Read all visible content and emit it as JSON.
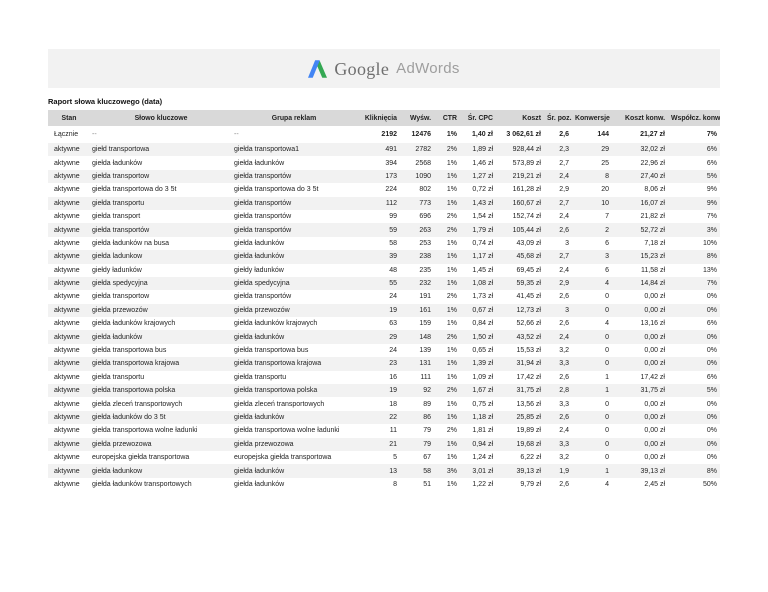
{
  "logo": {
    "google_text": "Google",
    "adwords_text": "AdWords",
    "colors": {
      "blue": "#4285F4",
      "green": "#34A853"
    }
  },
  "report_title": "Raport słowa kluczowego (data)",
  "table": {
    "columns": [
      "Stan",
      "Słowo kluczowe",
      "Grupa reklam",
      "Kliknięcia",
      "Wyśw.",
      "CTR",
      "Śr. CPC",
      "Koszt",
      "Śr. poz.",
      "Konwersje",
      "Koszt konw.",
      "Współcz. konw."
    ],
    "column_keys": [
      "stan",
      "keyword",
      "ad-group",
      "clicks",
      "impressions",
      "ctr",
      "avg-cpc",
      "cost",
      "avg-pos",
      "conversions",
      "cost-per-conv",
      "conv-rate"
    ],
    "totals_row": [
      "Łącznie",
      "--",
      "--",
      "2192",
      "12476",
      "1%",
      "1,40 zł",
      "3 062,61 zł",
      "2,6",
      "144",
      "21,27 zł",
      "7%"
    ],
    "rows": [
      [
        "aktywne",
        "giełd transportowa",
        "giełda transportowa1",
        "491",
        "2782",
        "2%",
        "1,89 zł",
        "928,44 zł",
        "2,3",
        "29",
        "32,02 zł",
        "6%"
      ],
      [
        "aktywne",
        "giełda ładunków",
        "giełda ładunków",
        "394",
        "2568",
        "1%",
        "1,46 zł",
        "573,89 zł",
        "2,7",
        "25",
        "22,96 zł",
        "6%"
      ],
      [
        "aktywne",
        "giełda transportow",
        "giełda transportów",
        "173",
        "1090",
        "1%",
        "1,27 zł",
        "219,21 zł",
        "2,4",
        "8",
        "27,40 zł",
        "5%"
      ],
      [
        "aktywne",
        "giełda transportowa do 3 5t",
        "giełda transportowa do 3 5t",
        "224",
        "802",
        "1%",
        "0,72 zł",
        "161,28 zł",
        "2,9",
        "20",
        "8,06 zł",
        "9%"
      ],
      [
        "aktywne",
        "giełda transportu",
        "giełda transportów",
        "112",
        "773",
        "1%",
        "1,43 zł",
        "160,67 zł",
        "2,7",
        "10",
        "16,07 zł",
        "9%"
      ],
      [
        "aktywne",
        "giełda transport",
        "giełda transportów",
        "99",
        "696",
        "2%",
        "1,54 zł",
        "152,74 zł",
        "2,4",
        "7",
        "21,82 zł",
        "7%"
      ],
      [
        "aktywne",
        "giełda transportów",
        "giełda transportów",
        "59",
        "263",
        "2%",
        "1,79 zł",
        "105,44 zł",
        "2,6",
        "2",
        "52,72 zł",
        "3%"
      ],
      [
        "aktywne",
        "giełda ładunków na busa",
        "giełda ładunków",
        "58",
        "253",
        "1%",
        "0,74 zł",
        "43,09 zł",
        "3",
        "6",
        "7,18 zł",
        "10%"
      ],
      [
        "aktywne",
        "giełda ladunkow",
        "giełda ładunków",
        "39",
        "238",
        "1%",
        "1,17 zł",
        "45,68 zł",
        "2,7",
        "3",
        "15,23 zł",
        "8%"
      ],
      [
        "aktywne",
        "giełdy ładunków",
        "giełdy ładunków",
        "48",
        "235",
        "1%",
        "1,45 zł",
        "69,45 zł",
        "2,4",
        "6",
        "11,58 zł",
        "13%"
      ],
      [
        "aktywne",
        "giełda spedycyjna",
        "giełda spedycyjna",
        "55",
        "232",
        "1%",
        "1,08 zł",
        "59,35 zł",
        "2,9",
        "4",
        "14,84 zł",
        "7%"
      ],
      [
        "aktywne",
        "giełda transportow",
        "giełda transportów",
        "24",
        "191",
        "2%",
        "1,73 zł",
        "41,45 zł",
        "2,6",
        "0",
        "0,00 zł",
        "0%"
      ],
      [
        "aktywne",
        "giełda przewozów",
        "giełda przewozów",
        "19",
        "161",
        "1%",
        "0,67 zł",
        "12,73 zł",
        "3",
        "0",
        "0,00 zł",
        "0%"
      ],
      [
        "aktywne",
        "giełda ładunków krajowych",
        "giełda ładunków krajowych",
        "63",
        "159",
        "1%",
        "0,84 zł",
        "52,66 zł",
        "2,6",
        "4",
        "13,16 zł",
        "6%"
      ],
      [
        "aktywne",
        "giełda ładunków",
        "giełda ładunków",
        "29",
        "148",
        "2%",
        "1,50 zł",
        "43,52 zł",
        "2,4",
        "0",
        "0,00 zł",
        "0%"
      ],
      [
        "aktywne",
        "giełda transportowa bus",
        "giełda transportowa bus",
        "24",
        "139",
        "1%",
        "0,65 zł",
        "15,53 zł",
        "3,2",
        "0",
        "0,00 zł",
        "0%"
      ],
      [
        "aktywne",
        "giełda transportowa krajowa",
        "giełda transportowa krajowa",
        "23",
        "131",
        "1%",
        "1,39 zł",
        "31,94 zł",
        "3,3",
        "0",
        "0,00 zł",
        "0%"
      ],
      [
        "aktywne",
        "giełda transportu",
        "giełda transportu",
        "16",
        "111",
        "1%",
        "1,09 zł",
        "17,42 zł",
        "2,6",
        "1",
        "17,42 zł",
        "6%"
      ],
      [
        "aktywne",
        "giełda transportowa polska",
        "giełda transportowa polska",
        "19",
        "92",
        "2%",
        "1,67 zł",
        "31,75 zł",
        "2,8",
        "1",
        "31,75 zł",
        "5%"
      ],
      [
        "aktywne",
        "giełda zleceń transportowych",
        "giełda zleceń transportowych",
        "18",
        "89",
        "1%",
        "0,75 zł",
        "13,56 zł",
        "3,3",
        "0",
        "0,00 zł",
        "0%"
      ],
      [
        "aktywne",
        "giełda ładunków do 3 5t",
        "giełda ładunków",
        "22",
        "86",
        "1%",
        "1,18 zł",
        "25,85 zł",
        "2,6",
        "0",
        "0,00 zł",
        "0%"
      ],
      [
        "aktywne",
        "giełda transportowa wolne ładunki",
        "giełda transportowa wolne ładunki",
        "11",
        "79",
        "2%",
        "1,81 zł",
        "19,89 zł",
        "2,4",
        "0",
        "0,00 zł",
        "0%"
      ],
      [
        "aktywne",
        "giełda przewozowa",
        "giełda przewozowa",
        "21",
        "79",
        "1%",
        "0,94 zł",
        "19,68 zł",
        "3,3",
        "0",
        "0,00 zł",
        "0%"
      ],
      [
        "aktywne",
        "europejska giełda transportowa",
        "europejska giełda transportowa",
        "5",
        "67",
        "1%",
        "1,24 zł",
        "6,22 zł",
        "3,2",
        "0",
        "0,00 zł",
        "0%"
      ],
      [
        "aktywne",
        "giełda ładunkow",
        "giełda ładunków",
        "13",
        "58",
        "3%",
        "3,01 zł",
        "39,13 zł",
        "1,9",
        "1",
        "39,13 zł",
        "8%"
      ],
      [
        "aktywne",
        "giełda ładunków transportowych",
        "giełda ładunków",
        "8",
        "51",
        "1%",
        "1,22 zł",
        "9,79 zł",
        "2,6",
        "4",
        "2,45 zł",
        "50%"
      ]
    ]
  }
}
